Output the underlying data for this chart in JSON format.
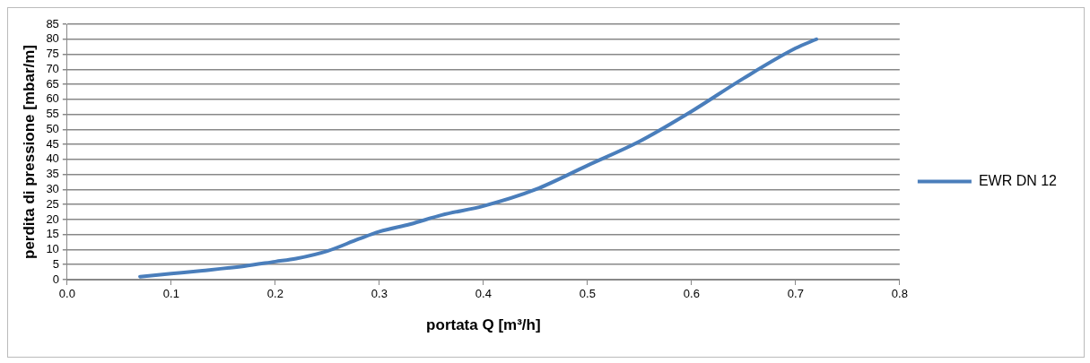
{
  "chart_data": {
    "type": "line",
    "xlabel": "portata Q [m³/h]",
    "ylabel": "perdita di pressione [mbar/m]",
    "xlim": [
      0,
      0.8
    ],
    "xticks": [
      {
        "value": 0,
        "label": "0.0"
      },
      0.1,
      0.2,
      0.3,
      0.4,
      0.5,
      0.6,
      0.7,
      0.8
    ],
    "ylim": [
      0,
      85
    ],
    "yticks": [
      0,
      5,
      10,
      15,
      20,
      25,
      30,
      35,
      40,
      45,
      50,
      55,
      60,
      65,
      70,
      75,
      80,
      85
    ],
    "grid": "y",
    "legend": "right",
    "marker": "none",
    "line_style": "solid",
    "x": [
      0.07,
      0.1,
      0.13,
      0.17,
      0.2,
      0.22,
      0.25,
      0.28,
      0.3,
      0.33,
      0.36,
      0.4,
      0.45,
      0.5,
      0.55,
      0.6,
      0.65,
      0.7,
      0.72
    ],
    "series": [
      {
        "name": "EWR DN 12",
        "color": "#4a7ebb",
        "values": [
          1,
          2,
          3,
          4.5,
          6,
          7,
          9.5,
          13.5,
          16,
          18.5,
          21.5,
          24.5,
          30,
          38,
          46,
          56,
          67,
          77,
          80
        ]
      }
    ]
  }
}
